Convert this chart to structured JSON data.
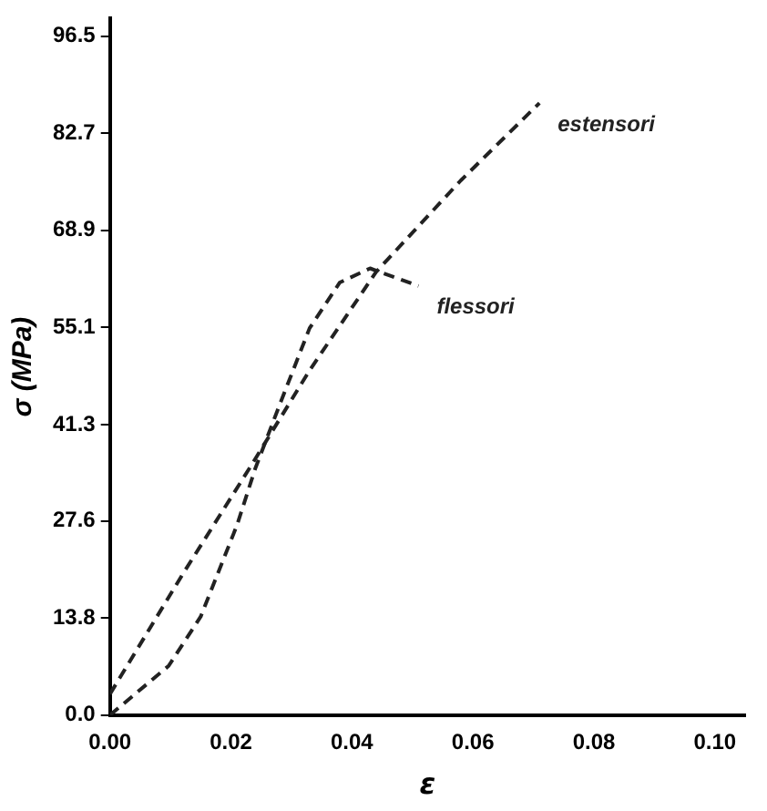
{
  "chart_data": {
    "type": "line",
    "xlabel": "ε",
    "ylabel": "σ (MPa)",
    "xlim": [
      0,
      0.105
    ],
    "ylim": [
      0,
      99
    ],
    "xticks": [
      {
        "value": 0,
        "label": "0.00"
      },
      {
        "value": 0.02,
        "label": "0.02"
      },
      {
        "value": 0.04,
        "label": "0.04"
      },
      {
        "value": 0.06,
        "label": "0.06"
      },
      {
        "value": 0.08,
        "label": "0.08"
      },
      {
        "value": 0.1,
        "label": "0.10"
      }
    ],
    "yticks": [
      {
        "value": 0,
        "label": "0.0"
      },
      13.8,
      27.6,
      41.3,
      55.1,
      68.9,
      82.7,
      96.5
    ],
    "grid": false,
    "legend": false,
    "marker": "none",
    "line_style": "dashed",
    "series": [
      {
        "name": "estensori",
        "color": "#222222",
        "x": [
          0,
          0.012,
          0.023,
          0.033,
          0.044,
          0.058,
          0.071
        ],
        "values": [
          3,
          20,
          35,
          49,
          63,
          76,
          87
        ]
      },
      {
        "name": "flessori",
        "color": "#222222",
        "x": [
          0,
          0.0097,
          0.015,
          0.021,
          0.024,
          0.028,
          0.033,
          0.038,
          0.043,
          0.051
        ],
        "values": [
          0,
          7,
          14,
          27,
          35,
          44,
          55,
          61.5,
          63.5,
          61
        ]
      }
    ]
  }
}
